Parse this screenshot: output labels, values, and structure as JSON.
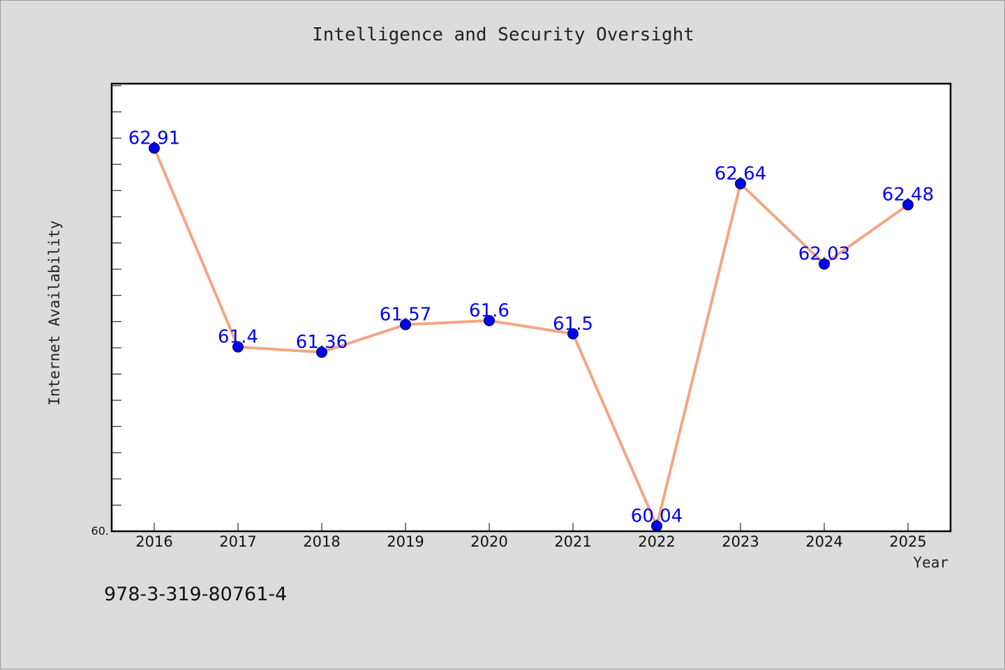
{
  "chart_data": {
    "type": "line",
    "title": "Intelligence and Security Oversight",
    "xlabel": "Year",
    "ylabel": "Internet Availability",
    "categories": [
      "2016",
      "2017",
      "2018",
      "2019",
      "2020",
      "2021",
      "2022",
      "2023",
      "2024",
      "2025"
    ],
    "series": [
      {
        "values": [
          62.91,
          61.4,
          61.36,
          61.57,
          61.6,
          61.5,
          60.04,
          62.64,
          62.03,
          62.48
        ]
      }
    ],
    "data_labels": [
      "62.91",
      "61.4",
      "61.36",
      "61.57",
      "61.6",
      "61.5",
      "60.04",
      "62.64",
      "62.03",
      "62.48"
    ],
    "ytick_labels": [
      "60."
    ],
    "ylim": [
      60.0,
      63.4
    ],
    "grid": false,
    "colors": {
      "line": "#f4a582",
      "marker": "#0000ee",
      "label": "#0000ee",
      "plot_background": "#ffffff",
      "figure_background": "#dcdcdc"
    }
  },
  "footer": {
    "isbn": "978-3-319-80761-4"
  }
}
